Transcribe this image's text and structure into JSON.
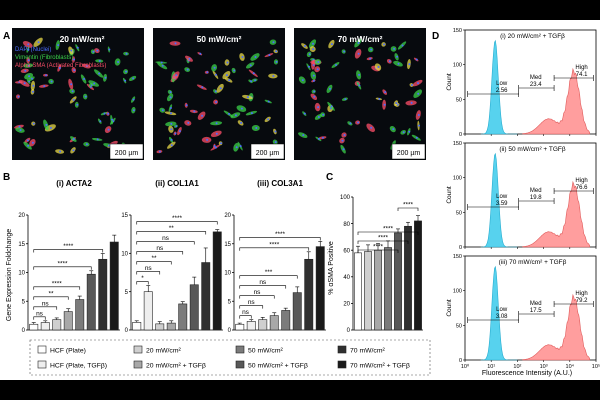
{
  "panel_letters": [
    "A",
    "B",
    "C",
    "D"
  ],
  "micrographs": [
    {
      "title": "20 mW/cm²",
      "scale_bar": "200 µm",
      "stain_legend": [
        "DAPI (Nuclei)",
        "Vimentin (Fibroblasts)",
        "Alpha-SMA (Activated Fibroblasts)"
      ]
    },
    {
      "title": "50 mW/cm²",
      "scale_bar": "200 µm"
    },
    {
      "title": "70 mW/cm²",
      "scale_bar": "200 µm"
    }
  ],
  "colors": {
    "stain_dapi": "#4a6cff",
    "stain_vimentin": "#3bd24a",
    "stain_asma": "#ff4f6a",
    "hist_low": "#57d2ee",
    "hist_high": "#ff9e9e",
    "group_shades": [
      "#ffffff",
      "#eeeeee",
      "#cfcfcf",
      "#a8a8a8",
      "#7b7b7b",
      "#585858",
      "#303030",
      "#1a1a1a"
    ]
  },
  "chart_data": [
    {
      "panel": "B",
      "subtitle": "(i) ACTA2",
      "type": "bar",
      "ylabel": "Gene Expression Foldchange",
      "ylim": [
        0,
        20
      ],
      "yticks": [
        0,
        5,
        10,
        15,
        20
      ],
      "values": [
        1.0,
        1.3,
        1.8,
        3.2,
        5.3,
        9.7,
        12.3,
        15.3
      ],
      "errors": [
        0.3,
        0.3,
        0.3,
        0.5,
        0.6,
        0.6,
        1.0,
        1.2
      ],
      "brackets": [
        {
          "from": 0,
          "to": 1,
          "label": "ns"
        },
        {
          "from": 0,
          "to": 2,
          "label": "ns"
        },
        {
          "from": 0,
          "to": 3,
          "label": "**"
        },
        {
          "from": 0,
          "to": 4,
          "label": "****"
        },
        {
          "from": 0,
          "to": 5,
          "label": "****"
        },
        {
          "from": 0,
          "to": 6,
          "label": "****"
        }
      ]
    },
    {
      "panel": "B",
      "subtitle": "(ii) COL1A1",
      "type": "bar",
      "ylim": [
        0,
        15
      ],
      "yticks": [
        0,
        5,
        10,
        15
      ],
      "values": [
        1.0,
        5.0,
        0.8,
        0.9,
        3.4,
        5.9,
        8.8,
        12.8
      ],
      "errors": [
        0.2,
        0.8,
        0.3,
        0.3,
        0.3,
        1.0,
        1.9,
        0.3
      ],
      "brackets": [
        {
          "from": 0,
          "to": 1,
          "label": "*"
        },
        {
          "from": 0,
          "to": 2,
          "label": "ns"
        },
        {
          "from": 0,
          "to": 3,
          "label": "**"
        },
        {
          "from": 0,
          "to": 4,
          "label": "ns"
        },
        {
          "from": 0,
          "to": 5,
          "label": "ns"
        },
        {
          "from": 0,
          "to": 6,
          "label": "**"
        },
        {
          "from": 0,
          "to": 7,
          "label": "****"
        }
      ]
    },
    {
      "panel": "B",
      "subtitle": "(iii) COL3A1",
      "type": "bar",
      "ylim": [
        0,
        20
      ],
      "yticks": [
        0,
        5,
        10,
        15,
        20
      ],
      "values": [
        1.0,
        1.5,
        1.8,
        2.5,
        3.4,
        6.5,
        12.3,
        14.5
      ],
      "errors": [
        0.2,
        0.3,
        0.4,
        0.5,
        0.4,
        1.0,
        1.3,
        0.9
      ],
      "brackets": [
        {
          "from": 0,
          "to": 1,
          "label": "ns"
        },
        {
          "from": 0,
          "to": 2,
          "label": "ns"
        },
        {
          "from": 0,
          "to": 3,
          "label": "ns"
        },
        {
          "from": 0,
          "to": 4,
          "label": "ns"
        },
        {
          "from": 0,
          "to": 5,
          "label": "***"
        },
        {
          "from": 0,
          "to": 6,
          "label": "****"
        },
        {
          "from": 0,
          "to": 7,
          "label": "****"
        }
      ]
    },
    {
      "panel": "C",
      "type": "bar",
      "ylabel": "% αSMA Positive",
      "ylim": [
        0,
        100
      ],
      "yticks": [
        0,
        20,
        40,
        60,
        80,
        100
      ],
      "values": [
        58,
        59,
        60,
        62,
        73,
        78,
        82
      ],
      "errors": [
        5,
        5,
        5,
        5,
        3,
        3,
        4
      ],
      "brackets": [
        {
          "from": 0,
          "to": 4,
          "label": "****"
        },
        {
          "from": 0,
          "to": 5,
          "label": "****"
        },
        {
          "from": 0,
          "to": 6,
          "label": "****"
        },
        {
          "from": 4,
          "to": 6,
          "label": "****"
        }
      ]
    },
    {
      "panel": "D",
      "type": "area",
      "xscale": "log",
      "xlabel": "Fluorescence Intensity (A.U.)",
      "ylabel": "Count",
      "xtick_labels": [
        "10⁰",
        "10¹",
        "10²",
        "10³",
        "10⁴",
        "10⁵"
      ],
      "ylim": [
        0,
        150
      ],
      "yticks": [
        0,
        50,
        100,
        150
      ],
      "histograms": [
        {
          "title": "(i) 20 mW/cm² + TGFβ",
          "low": "2.56",
          "med": "23.4",
          "high": "74.1"
        },
        {
          "title": "(ii) 50 mW/cm² + TGFβ",
          "low": "3.59",
          "med": "19.8",
          "high": "76.6"
        },
        {
          "title": "(iii) 70 mW/cm² + TGFβ",
          "low": "3.08",
          "med": "17.5",
          "high": "79.2"
        }
      ],
      "gate_labels": {
        "low": "Low",
        "med": "Med",
        "high": "High"
      }
    }
  ],
  "legend": [
    "HCF (Plate)",
    "20 mW/cm²",
    "50 mW/cm²",
    "70 mW/cm²",
    "HCF (Plate, TGFβ)",
    "20 mW/cm² + TGFβ",
    "50 mW/cm² + TGFβ",
    "70 mW/cm² + TGFβ"
  ]
}
